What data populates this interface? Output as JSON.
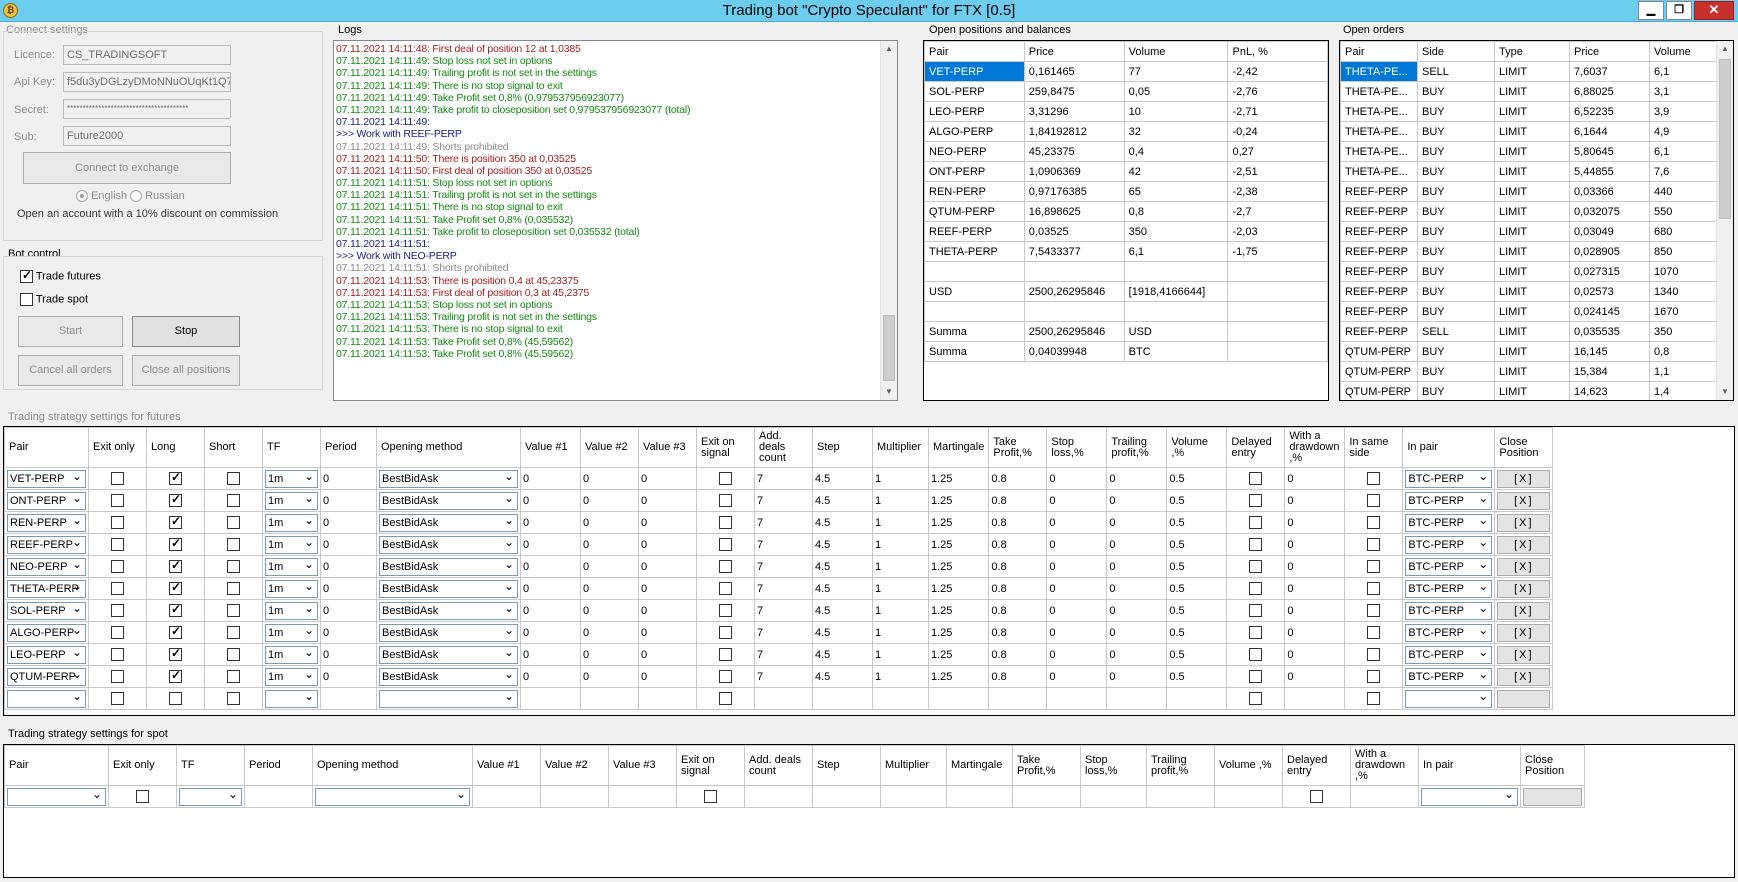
{
  "window": {
    "title": "Trading bot \"Crypto Speculant\" for FTX [0.5]",
    "app_icon": "coin-icon"
  },
  "connect": {
    "group_title": "Connect settings",
    "licence_label": "Licence:",
    "licence_value": "CS_TRADINGSOFT",
    "apikey_label": "Api Key:",
    "apikey_value": "f5du3yDGLzyDMoNNuOUqKt1Q7",
    "secret_label": "Secret:",
    "secret_value": "***************************************",
    "sub_label": "Sub:",
    "sub_value": "Future2000",
    "connect_button": "Connect to exchange",
    "lang_english": "English",
    "lang_russian": "Russian",
    "promo": "Open an account with a 10% discount on commission"
  },
  "bot": {
    "group_title": "Bot control",
    "trade_futures": "Trade futures",
    "trade_spot": "Trade spot",
    "start": "Start",
    "stop": "Stop",
    "cancel_orders": "Cancel all orders",
    "close_positions": "Close all positions"
  },
  "logs": {
    "title": "Logs",
    "lines": [
      {
        "c": "red",
        "t": "07.11.2021 14:11:48: First deal of position  12 at 1,0385"
      },
      {
        "c": "green",
        "t": "07.11.2021 14:11:49: Stop loss not set in options"
      },
      {
        "c": "green",
        "t": "07.11.2021 14:11:49: Trailing profit is not set in the settings"
      },
      {
        "c": "green",
        "t": "07.11.2021 14:11:49: There is no stop signal to exit"
      },
      {
        "c": "green",
        "t": "07.11.2021 14:11:49: Take Profit set 0,8% (0,979537956923077)"
      },
      {
        "c": "green",
        "t": "07.11.2021 14:11:49: Take profit to closeposition set 0,979537956923077 (total)"
      },
      {
        "c": "blue",
        "t": "07.11.2021 14:11:49:"
      },
      {
        "c": "blue",
        "t": ">>> Work with REEF-PERP"
      },
      {
        "c": "gray",
        "t": "07.11.2021 14:11:49: Shorts prohibited"
      },
      {
        "c": "red",
        "t": "07.11.2021 14:11:50: There is position 350 at 0,03525"
      },
      {
        "c": "red",
        "t": "07.11.2021 14:11:50: First deal of position  350 at 0,03525"
      },
      {
        "c": "green",
        "t": "07.11.2021 14:11:51: Stop loss not set in options"
      },
      {
        "c": "green",
        "t": "07.11.2021 14:11:51: Trailing profit is not set in the settings"
      },
      {
        "c": "green",
        "t": "07.11.2021 14:11:51: There is no stop signal to exit"
      },
      {
        "c": "green",
        "t": "07.11.2021 14:11:51: Take Profit set 0,8% (0,035532)"
      },
      {
        "c": "green",
        "t": "07.11.2021 14:11:51: Take profit to closeposition set 0,035532 (total)"
      },
      {
        "c": "blue",
        "t": "07.11.2021 14:11:51:"
      },
      {
        "c": "blue",
        "t": ">>> Work with NEO-PERP"
      },
      {
        "c": "gray",
        "t": "07.11.2021 14:11:51: Shorts prohibited"
      },
      {
        "c": "red",
        "t": "07.11.2021 14:11:53: There is position 0,4 at 45,23375"
      },
      {
        "c": "red",
        "t": "07.11.2021 14:11:53: First deal of position  0,3 at 45,2375"
      },
      {
        "c": "green",
        "t": "07.11.2021 14:11:53: Stop loss not set in options"
      },
      {
        "c": "green",
        "t": "07.11.2021 14:11:53: Trailing profit is not set in the settings"
      },
      {
        "c": "green",
        "t": "07.11.2021 14:11:53: There is no stop signal to exit"
      },
      {
        "c": "green",
        "t": "07.11.2021 14:11:53: Take Profit set 0,8% (45,59562)"
      },
      {
        "c": "green",
        "t": "07.11.2021 14:11:53: Take Profit set 0,8% (45,59562)"
      }
    ]
  },
  "positions": {
    "title": "Open positions and balances",
    "headers": [
      "Pair",
      "Price",
      "Volume",
      "PnL, %"
    ],
    "rows": [
      [
        "VET-PERP",
        "0,161465",
        "77",
        "-2,42"
      ],
      [
        "SOL-PERP",
        "259,8475",
        "0,05",
        "-2,76"
      ],
      [
        "LEO-PERP",
        "3,31296",
        "10",
        "-2,71"
      ],
      [
        "ALGO-PERP",
        "1,84192812",
        "32",
        "-0,24"
      ],
      [
        "NEO-PERP",
        "45,23375",
        "0,4",
        "0,27"
      ],
      [
        "ONT-PERP",
        "1,0906369",
        "42",
        "-2,51"
      ],
      [
        "REN-PERP",
        "0,97176385",
        "65",
        "-2,38"
      ],
      [
        "QTUM-PERP",
        "16,898625",
        "0,8",
        "-2,7"
      ],
      [
        "REEF-PERP",
        "0,03525",
        "350",
        "-2,03"
      ],
      [
        "THETA-PERP",
        "7,5433377",
        "6,1",
        "-1,75"
      ],
      [
        "",
        "",
        "",
        ""
      ],
      [
        "USD",
        "2500,26295846",
        "[1918,4166644]",
        ""
      ],
      [
        "",
        "",
        "",
        ""
      ],
      [
        "Summa",
        "2500,26295846",
        "USD",
        ""
      ],
      [
        "Summa",
        "0,04039948",
        "BTC",
        ""
      ]
    ]
  },
  "orders": {
    "title": "Open orders",
    "headers": [
      "Pair",
      "Side",
      "Type",
      "Price",
      "Volume"
    ],
    "rows": [
      [
        "THETA-PE...",
        "SELL",
        "LIMIT",
        "7,6037",
        "6,1"
      ],
      [
        "THETA-PE...",
        "BUY",
        "LIMIT",
        "6,88025",
        "3,1"
      ],
      [
        "THETA-PE...",
        "BUY",
        "LIMIT",
        "6,52235",
        "3,9"
      ],
      [
        "THETA-PE...",
        "BUY",
        "LIMIT",
        "6,1644",
        "4,9"
      ],
      [
        "THETA-PE...",
        "BUY",
        "LIMIT",
        "5,80645",
        "6,1"
      ],
      [
        "THETA-PE...",
        "BUY",
        "LIMIT",
        "5,44855",
        "7,6"
      ],
      [
        "REEF-PERP",
        "BUY",
        "LIMIT",
        "0,03366",
        "440"
      ],
      [
        "REEF-PERP",
        "BUY",
        "LIMIT",
        "0,032075",
        "550"
      ],
      [
        "REEF-PERP",
        "BUY",
        "LIMIT",
        "0,03049",
        "680"
      ],
      [
        "REEF-PERP",
        "BUY",
        "LIMIT",
        "0,028905",
        "850"
      ],
      [
        "REEF-PERP",
        "BUY",
        "LIMIT",
        "0,027315",
        "1070"
      ],
      [
        "REEF-PERP",
        "BUY",
        "LIMIT",
        "0,02573",
        "1340"
      ],
      [
        "REEF-PERP",
        "BUY",
        "LIMIT",
        "0,024145",
        "1670"
      ],
      [
        "REEF-PERP",
        "SELL",
        "LIMIT",
        "0,035535",
        "350"
      ],
      [
        "QTUM-PERP",
        "BUY",
        "LIMIT",
        "16,145",
        "0,8"
      ],
      [
        "QTUM-PERP",
        "BUY",
        "LIMIT",
        "15,384",
        "1,1"
      ],
      [
        "QTUM-PERP",
        "BUY",
        "LIMIT",
        "14,623",
        "1,4"
      ]
    ]
  },
  "futures": {
    "title": "Trading strategy settings for futures",
    "headers": [
      "Pair",
      "Exit only",
      "Long",
      "Short",
      "TF",
      "Period",
      "Opening method",
      "Value #1",
      "Value #2",
      "Value #3",
      "Exit on signal",
      "Add. deals count",
      "Step",
      "Multiplier",
      "Martingale",
      "Take Profit,%",
      "Stop loss,%",
      "Trailing profit,%",
      "Volume ,%",
      "Delayed entry",
      "With a drawdown ,%",
      "In same side",
      "In pair",
      "Close Position"
    ],
    "close_label": "[X]",
    "rows": [
      {
        "pair": "VET-PERP",
        "long": true
      },
      {
        "pair": "ONT-PERP",
        "long": true
      },
      {
        "pair": "REN-PERP",
        "long": true
      },
      {
        "pair": "REEF-PERP",
        "long": true
      },
      {
        "pair": "NEO-PERP",
        "long": true
      },
      {
        "pair": "THETA-PERP",
        "long": true
      },
      {
        "pair": "SOL-PERP",
        "long": true
      },
      {
        "pair": "ALGO-PERP",
        "long": true
      },
      {
        "pair": "LEO-PERP",
        "long": true
      },
      {
        "pair": "QTUM-PERP",
        "long": true
      }
    ],
    "common": {
      "tf": "1m",
      "period": "0",
      "method": "BestBidAsk",
      "v1": "0",
      "v2": "0",
      "v3": "0",
      "deals": "7",
      "step": "4.5",
      "mult": "1",
      "mart": "1.25",
      "tp": "0.8",
      "sl": "0",
      "trail": "0",
      "vol": "0.5",
      "drawdown": "0",
      "inpair": "BTC-PERP"
    }
  },
  "spot": {
    "title": "Trading strategy settings for spot",
    "headers": [
      "Pair",
      "Exit only",
      "TF",
      "Period",
      "Opening method",
      "Value #1",
      "Value #2",
      "Value #3",
      "Exit on signal",
      "Add. deals count",
      "Step",
      "Multiplier",
      "Martingale",
      "Take Profit,%",
      "Stop loss,%",
      "Trailing profit,%",
      "Volume ,%",
      "Delayed entry",
      "With a drawdown ,%",
      "In pair",
      "Close Position"
    ]
  }
}
